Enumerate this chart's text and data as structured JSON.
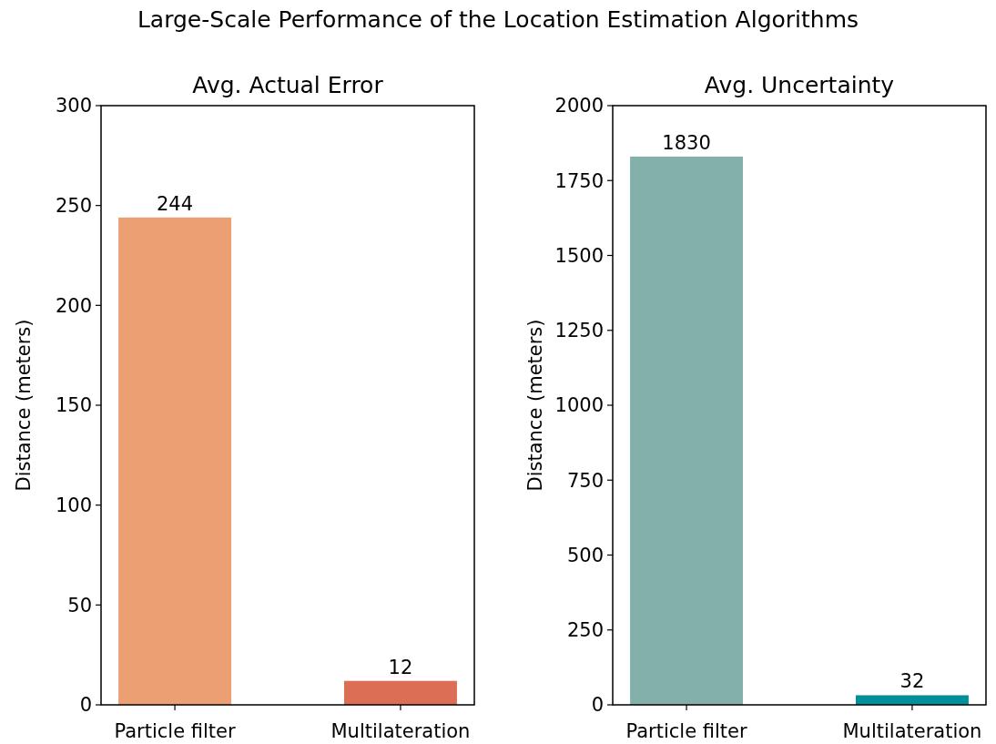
{
  "chart_data": [
    {
      "type": "bar",
      "title": "Avg. Actual Error",
      "ylabel": "Distance (meters)",
      "annotations": [
        "Large-Scale Performance of the Location Estimation Algorithms"
      ],
      "categories": [
        "Particle filter",
        "Multilateration"
      ],
      "values": [
        244,
        12
      ],
      "colors": [
        "#eb9f73",
        "#dc6e55"
      ],
      "ylim": [
        0,
        300
      ],
      "yticks": [
        0,
        50,
        100,
        150,
        200,
        250,
        300
      ],
      "data_labels": true
    },
    {
      "type": "bar",
      "title": "Avg. Uncertainty",
      "ylabel": "Distance (meters)",
      "categories": [
        "Particle filter",
        "Multilateration"
      ],
      "values": [
        1830,
        32
      ],
      "colors": [
        "#84b0aa",
        "#00909a"
      ],
      "ylim": [
        0,
        2000
      ],
      "yticks": [
        0,
        250,
        500,
        750,
        1000,
        1250,
        1500,
        1750,
        2000
      ],
      "data_labels": true
    }
  ]
}
